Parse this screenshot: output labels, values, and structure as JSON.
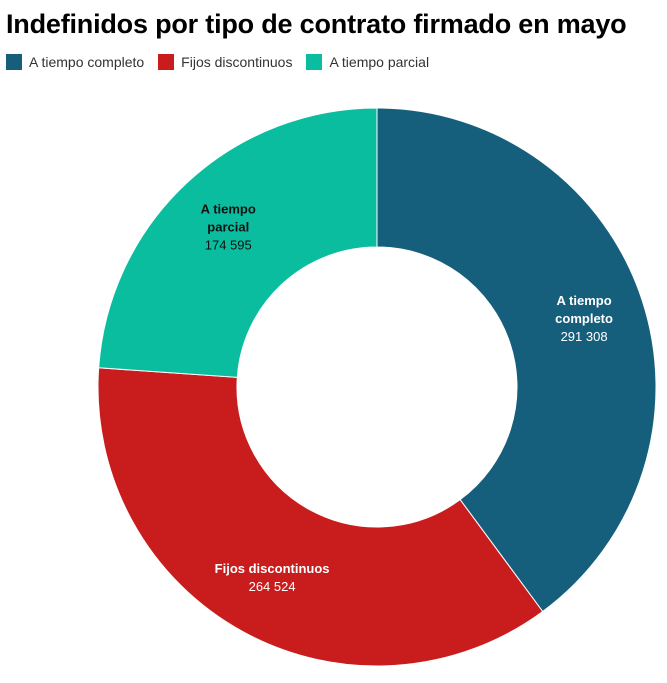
{
  "chart_data": {
    "type": "pie",
    "title": "Indefinidos por tipo de contrato firmado en mayo",
    "donut": true,
    "legend_position": "top-left",
    "slices": [
      {
        "name": "A tiempo completo",
        "value": 291308,
        "value_label": "291 308",
        "label_lines": [
          "A tiempo",
          "completo"
        ],
        "color": "#165f7c",
        "label_color": "#ffffff"
      },
      {
        "name": "Fijos discontinuos",
        "value": 264524,
        "value_label": "264 524",
        "label_lines": [
          "Fijos discontinuos"
        ],
        "color": "#c91d1d",
        "label_color": "#ffffff"
      },
      {
        "name": "A tiempo parcial",
        "value": 174595,
        "value_label": "174 595",
        "label_lines": [
          "A tiempo",
          "parcial"
        ],
        "color": "#0bbd9f",
        "label_color": "#111111"
      }
    ]
  }
}
